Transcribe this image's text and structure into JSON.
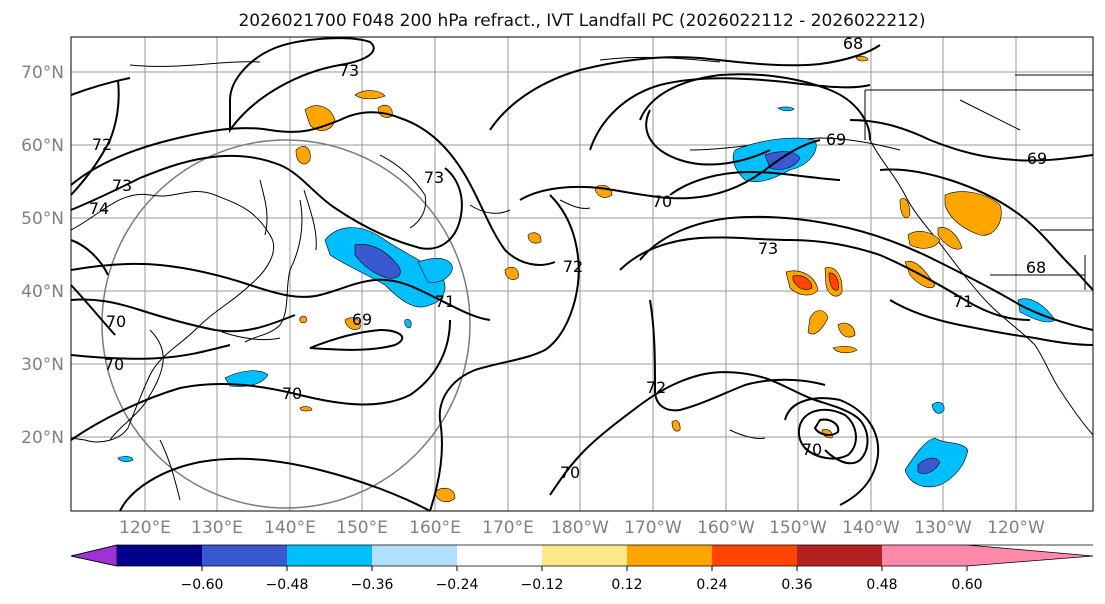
{
  "title": "2026021700 F048 200 hPa refract., IVT Landfall PC (2026022112 - 2026022212)",
  "lat_labels": [
    "70°N",
    "60°N",
    "50°N",
    "40°N",
    "30°N",
    "20°N"
  ],
  "lon_labels": [
    "120°E",
    "130°E",
    "140°E",
    "150°E",
    "160°E",
    "170°E",
    "180°W",
    "170°W",
    "160°W",
    "150°W",
    "140°W",
    "130°W",
    "120°W"
  ],
  "contour_labels": [
    "68",
    "73",
    "72",
    "73",
    "74",
    "73",
    "70",
    "73",
    "72",
    "69",
    "70",
    "69",
    "70",
    "70",
    "71",
    "69",
    "68",
    "71",
    "72",
    "70",
    "70"
  ],
  "colorbar": {
    "ticks": [
      "−0.60",
      "−0.48",
      "−0.36",
      "−0.24",
      "−0.12",
      "0.12",
      "0.24",
      "0.36",
      "0.48",
      "0.60"
    ],
    "colors": [
      "#9b34d2",
      "#00008b",
      "#3a58d0",
      "#00bfff",
      "#b0e0fe",
      "#ffffff",
      "#ffe88a",
      "#ffa500",
      "#ff4500",
      "#b22222",
      "#ff89a8"
    ]
  }
}
